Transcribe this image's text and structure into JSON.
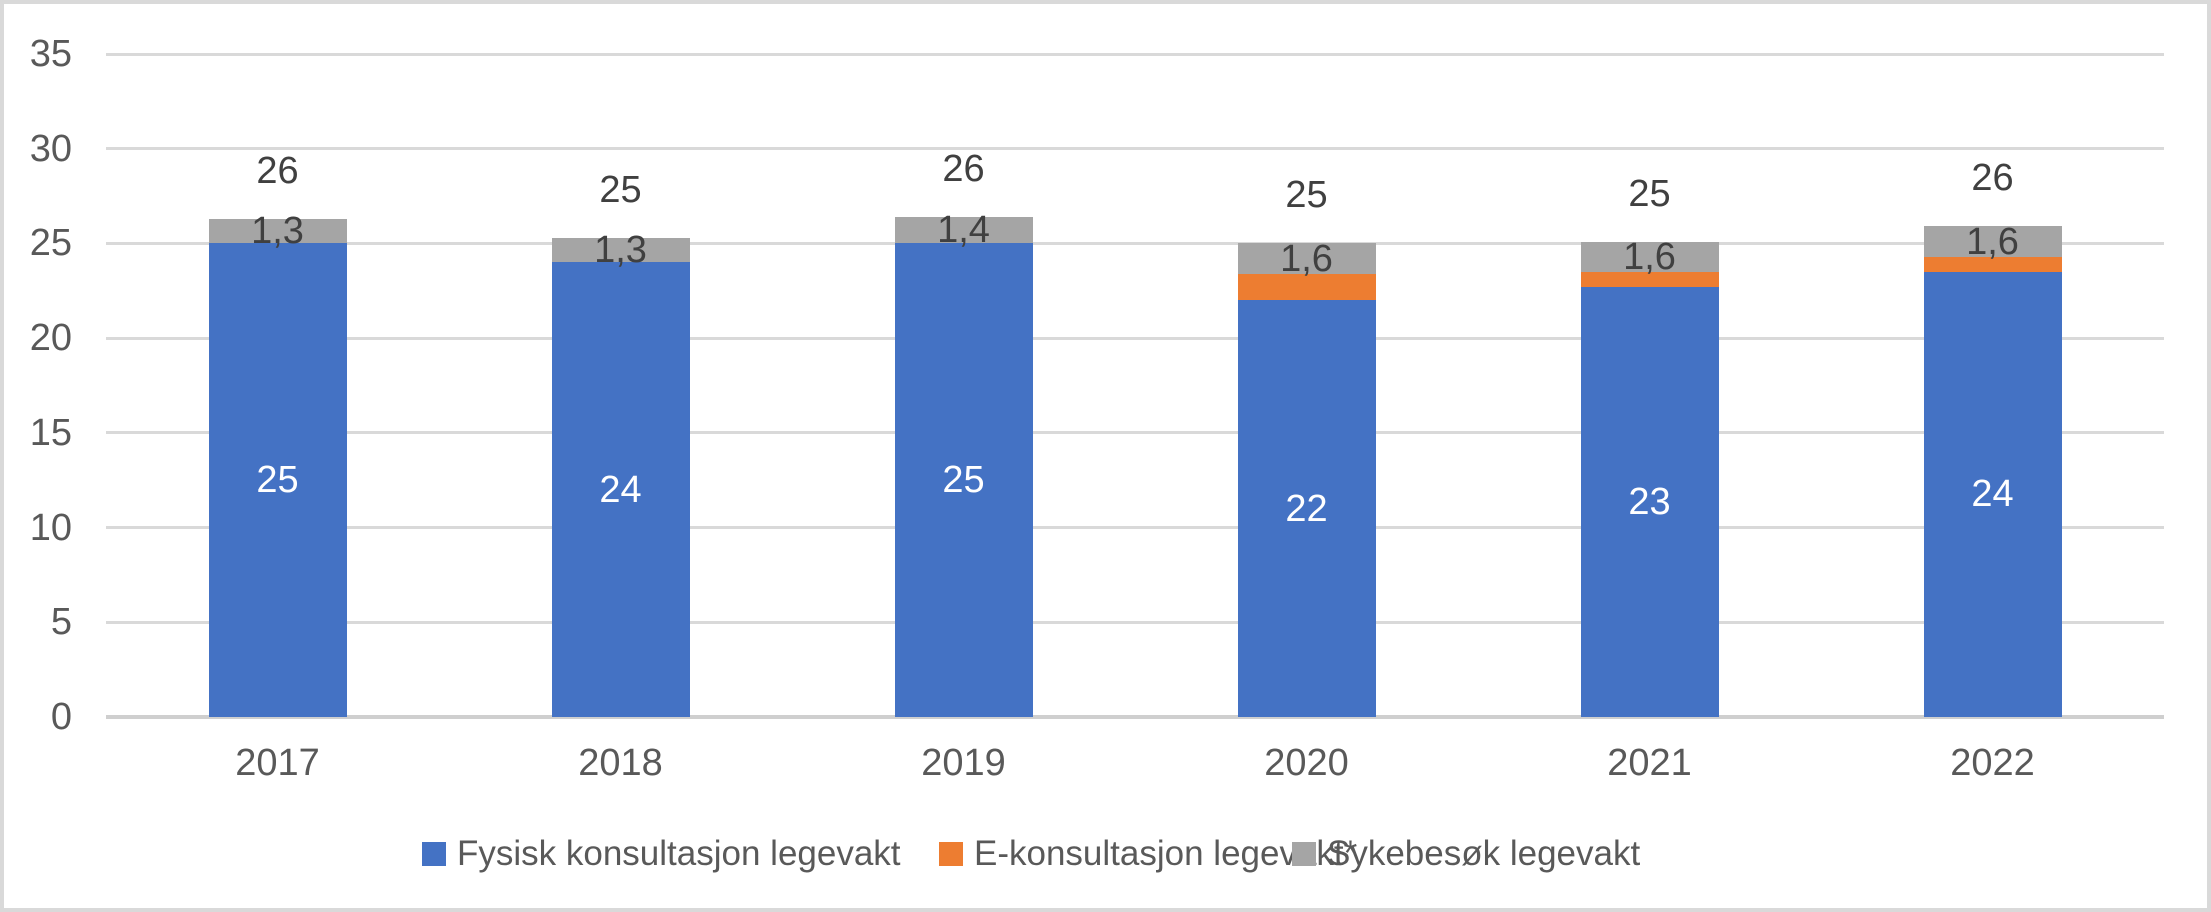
{
  "chart_data": {
    "type": "bar",
    "stacked": true,
    "title": "",
    "categories": [
      "2017",
      "2018",
      "2019",
      "2020",
      "2021",
      "2022"
    ],
    "series": [
      {
        "name": "Fysisk konsultasjon legevakt",
        "color": "#4472C4",
        "label_color": "#ffffff",
        "values": [
          25,
          24,
          25,
          22,
          22.7,
          23.5
        ],
        "labels": [
          "25",
          "24",
          "25",
          "22",
          "23",
          "24"
        ]
      },
      {
        "name": "E-konsultasjon legevakt*",
        "color": "#ED7D31",
        "label_color": "#404040",
        "values": [
          0,
          0,
          0,
          1.4,
          0.8,
          0.8
        ],
        "labels": [
          "",
          "",
          "",
          "",
          "",
          ""
        ]
      },
      {
        "name": "Sykebesøk legevakt",
        "color": "#A5A5A5",
        "label_color": "#404040",
        "values": [
          1.3,
          1.3,
          1.4,
          1.6,
          1.6,
          1.6
        ],
        "labels": [
          "1,3",
          "1,3",
          "1,4",
          "1,6",
          "1,6",
          "1,6"
        ]
      }
    ],
    "totals": [
      "26",
      "25",
      "26",
      "25",
      "25",
      "26"
    ],
    "ylim": [
      0,
      35
    ],
    "yticks": [
      "0",
      "5",
      "10",
      "15",
      "20",
      "25",
      "30",
      "35"
    ],
    "ytick_step": 5,
    "grid": true,
    "legend_position": "bottom",
    "xlabel": "",
    "ylabel": ""
  },
  "colors": {
    "grid": "#D9D9D9",
    "axis": "#CFCFCF",
    "tick_text": "#595959",
    "data_label": "#404040",
    "border": "#D9D9D9",
    "background": "#FFFFFF"
  }
}
